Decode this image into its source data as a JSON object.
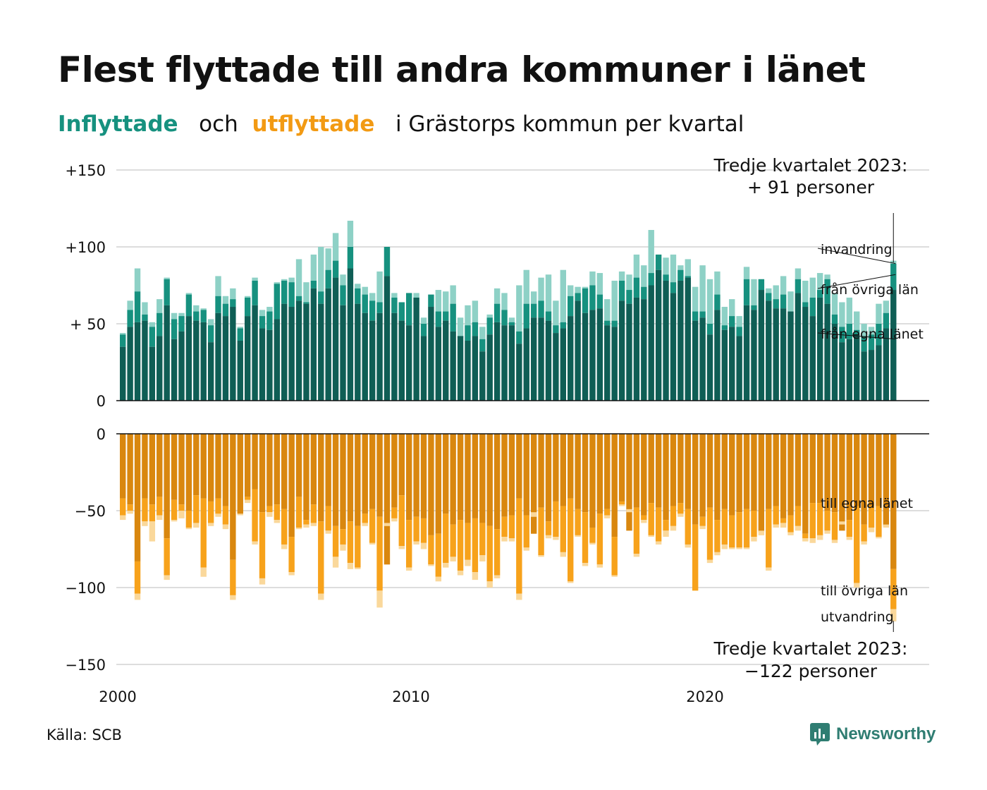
{
  "title": "Flest flyttade till andra kommuner i länet",
  "subtitle": {
    "in_word": "Inflyttade",
    "and_word": "och",
    "out_word": "utflyttade",
    "rest": "i Grästorps  kommun  per  kvartal"
  },
  "source": "Källa: SCB",
  "brand": "Newsworthy",
  "colors": {
    "in_egna": "#0f5e55",
    "in_ovriga": "#16917f",
    "in_invandring": "#8ed1c6",
    "out_egna": "#d9870f",
    "out_ovriga": "#f7a21b",
    "out_utvandring": "#fad89b",
    "grid": "#dddddd"
  },
  "chart_data": {
    "type": "bar",
    "stacked": true,
    "x_start": "2000 Q1",
    "x_ticks": [
      "2000",
      "2010",
      "2020"
    ],
    "y_ticks_top": [
      "+150",
      "+100",
      "+ 50",
      "0"
    ],
    "y_ticks_bottom": [
      "0",
      "−50",
      "−100",
      "−150"
    ],
    "in_series_labels": [
      "invandring",
      "från övriga län",
      "från egna länet"
    ],
    "out_series_labels": [
      "till egna länet",
      "till övriga län",
      "utvandring"
    ],
    "annotation_in": [
      "Tredje kvartalet 2023:",
      "+ 91 personer"
    ],
    "annotation_out": [
      "Tredje kvartalet 2023:",
      "−122 personer"
    ],
    "in_egna": [
      35,
      48,
      51,
      52,
      35,
      42,
      62,
      40,
      45,
      55,
      52,
      51,
      38,
      57,
      55,
      61,
      39,
      55,
      62,
      47,
      46,
      53,
      63,
      61,
      65,
      63,
      73,
      63,
      73,
      80,
      62,
      86,
      63,
      57,
      52,
      57,
      81,
      57,
      52,
      49,
      67,
      42,
      61,
      48,
      52,
      45,
      42,
      39,
      42,
      32,
      43,
      51,
      49,
      49,
      37,
      47,
      54,
      54,
      52,
      44,
      47,
      55,
      65,
      57,
      59,
      60,
      49,
      48,
      65,
      63,
      67,
      66,
      75,
      85,
      78,
      70,
      78,
      80,
      52,
      54,
      43,
      59,
      46,
      48,
      42,
      62,
      59,
      72,
      65,
      60,
      60,
      58,
      70,
      61,
      55,
      67,
      63,
      50,
      38,
      40,
      43,
      32,
      33,
      36,
      47,
      72
    ],
    "in_ovriga": [
      43,
      59,
      71,
      56,
      48,
      57,
      79,
      53,
      55,
      69,
      58,
      59,
      49,
      68,
      63,
      66,
      47,
      67,
      78,
      55,
      58,
      76,
      78,
      77,
      68,
      64,
      78,
      71,
      85,
      91,
      75,
      100,
      73,
      69,
      65,
      64,
      100,
      67,
      64,
      70,
      62,
      50,
      69,
      58,
      58,
      63,
      41,
      49,
      51,
      40,
      54,
      63,
      59,
      51,
      45,
      63,
      63,
      65,
      58,
      49,
      51,
      68,
      70,
      73,
      75,
      69,
      52,
      52,
      78,
      72,
      80,
      74,
      83,
      95,
      82,
      77,
      85,
      81,
      58,
      58,
      50,
      69,
      49,
      55,
      48,
      79,
      62,
      79,
      70,
      66,
      69,
      58,
      79,
      64,
      67,
      72,
      79,
      56,
      48,
      50,
      46,
      42,
      43,
      50,
      57,
      89
    ],
    "in_invandring": [
      44,
      65,
      86,
      64,
      51,
      66,
      80,
      57,
      57,
      70,
      62,
      60,
      53,
      81,
      68,
      73,
      48,
      68,
      80,
      59,
      61,
      77,
      79,
      80,
      92,
      77,
      95,
      100,
      99,
      109,
      82,
      117,
      76,
      74,
      70,
      84,
      76,
      70,
      54,
      67,
      70,
      54,
      62,
      72,
      71,
      75,
      54,
      62,
      65,
      48,
      56,
      73,
      70,
      54,
      75,
      85,
      71,
      80,
      82,
      65,
      85,
      75,
      74,
      74,
      84,
      83,
      66,
      78,
      84,
      82,
      95,
      88,
      111,
      93,
      93,
      95,
      88,
      92,
      74,
      88,
      79,
      84,
      61,
      66,
      55,
      87,
      79,
      75,
      73,
      75,
      81,
      71,
      86,
      78,
      80,
      83,
      82,
      70,
      64,
      67,
      58,
      50,
      48,
      63,
      65,
      91
    ],
    "out_egna": [
      42,
      46,
      83,
      42,
      46,
      41,
      68,
      43,
      46,
      50,
      40,
      42,
      44,
      42,
      47,
      82,
      52,
      41,
      36,
      51,
      47,
      46,
      49,
      67,
      41,
      56,
      46,
      57,
      47,
      60,
      62,
      57,
      60,
      52,
      49,
      54,
      85,
      48,
      40,
      56,
      54,
      55,
      66,
      65,
      52,
      59,
      56,
      58,
      55,
      58,
      60,
      62,
      54,
      53,
      42,
      53,
      65,
      48,
      57,
      44,
      47,
      42,
      49,
      51,
      61,
      52,
      49,
      67,
      44,
      63,
      48,
      53,
      45,
      48,
      56,
      47,
      45,
      49,
      59,
      54,
      48,
      56,
      49,
      53,
      51,
      49,
      50,
      64,
      49,
      47,
      55,
      53,
      47,
      65,
      45,
      45,
      50,
      51,
      63,
      56,
      47,
      59,
      47,
      47,
      60,
      88
    ],
    "out_utvandring_top": [
      56,
      52,
      108,
      60,
      70,
      56,
      95,
      57,
      55,
      62,
      61,
      93,
      60,
      54,
      62,
      108,
      53,
      45,
      72,
      98,
      54,
      58,
      75,
      92,
      62,
      61,
      60,
      108,
      65,
      87,
      76,
      88,
      88,
      60,
      72,
      113,
      60,
      57,
      75,
      89,
      72,
      75,
      86,
      96,
      87,
      83,
      92,
      86,
      95,
      83,
      100,
      94,
      70,
      70,
      108,
      76,
      54,
      80,
      68,
      69,
      80,
      97,
      67,
      86,
      72,
      87,
      55,
      93,
      47,
      51,
      80,
      58,
      67,
      72,
      67,
      63,
      54,
      74,
      102,
      62,
      84,
      79,
      75,
      75,
      75,
      75,
      70,
      66,
      89,
      61,
      61,
      66,
      63,
      70,
      71,
      69,
      65,
      71,
      59,
      69,
      100,
      72,
      64,
      68,
      61,
      122
    ],
    "out_ovriga": [
      53,
      50,
      104,
      57,
      57,
      53,
      92,
      56,
      50,
      61,
      58,
      87,
      58,
      52,
      59,
      105,
      52,
      43,
      70,
      94,
      51,
      56,
      72,
      90,
      61,
      59,
      58,
      104,
      63,
      80,
      72,
      84,
      87,
      58,
      71,
      102,
      58,
      55,
      73,
      87,
      70,
      71,
      85,
      93,
      84,
      80,
      89,
      82,
      90,
      79,
      96,
      92,
      67,
      68,
      104,
      74,
      51,
      79,
      66,
      67,
      77,
      96,
      66,
      84,
      71,
      85,
      53,
      92,
      46,
      49,
      78,
      56,
      66,
      70,
      63,
      60,
      52,
      72,
      102,
      60,
      82,
      77,
      72,
      74,
      74,
      74,
      67,
      63,
      87,
      59,
      58,
      64,
      60,
      68,
      68,
      66,
      63,
      69,
      57,
      67,
      97,
      70,
      61,
      67,
      59,
      114
    ]
  }
}
